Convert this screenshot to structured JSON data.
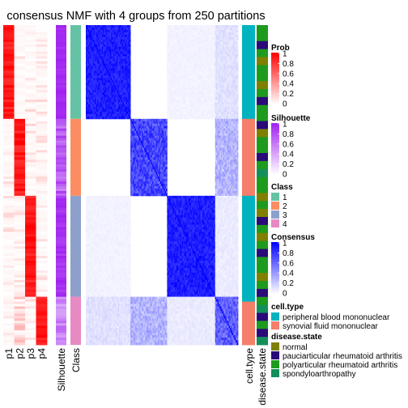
{
  "chart_data": {
    "type": "heatmap",
    "title": "consensus NMF with 4 groups from 250 partitions",
    "prob_columns": [
      "p1",
      "p2",
      "p3",
      "p4"
    ],
    "annotation_columns": [
      "Silhouette",
      "Class"
    ],
    "right_annotations": [
      "cell.type",
      "disease.state"
    ],
    "group_sizes": [
      39,
      32,
      42,
      20
    ],
    "class_colors": [
      "#66C2A5",
      "#FC8D62",
      "#8DA0CB",
      "#E78AC3"
    ],
    "legends": {
      "prob": {
        "title": "Prob",
        "ticks": [
          "1",
          "0.8",
          "0.6",
          "0.4",
          "0.2",
          "0"
        ],
        "low": "#FFFFFF",
        "high": "#FF0000"
      },
      "silhouette": {
        "title": "Silhouette",
        "ticks": [
          "1",
          "0.8",
          "0.6",
          "0.4",
          "0.2",
          "0"
        ],
        "low": "#FFFFFF",
        "high": "#A020F0"
      },
      "class": {
        "title": "Class",
        "items": [
          "1",
          "2",
          "3",
          "4"
        ]
      },
      "consensus": {
        "title": "Consensus",
        "ticks": [
          "1",
          "0.8",
          "0.6",
          "0.4",
          "0.2",
          "0"
        ],
        "low": "#FFFFFF",
        "high": "#0000FF"
      },
      "cell_type": {
        "title": "cell.type",
        "items": [
          {
            "label": "peripheral blood mononuclear",
            "color": "#00B3BF"
          },
          {
            "label": "synovial fluid mononuclear",
            "color": "#F47F6B"
          }
        ]
      },
      "disease_state": {
        "title": "disease.state",
        "items": [
          {
            "label": "normal",
            "color": "#808000"
          },
          {
            "label": "pauciarticular rheumatoid arthritis",
            "color": "#2A0A78"
          },
          {
            "label": "polyarticular rheumatoid arthritis",
            "color": "#1E9B1E"
          },
          {
            "label": "spondyloarthropathy",
            "color": "#138F5B"
          }
        ]
      }
    }
  }
}
